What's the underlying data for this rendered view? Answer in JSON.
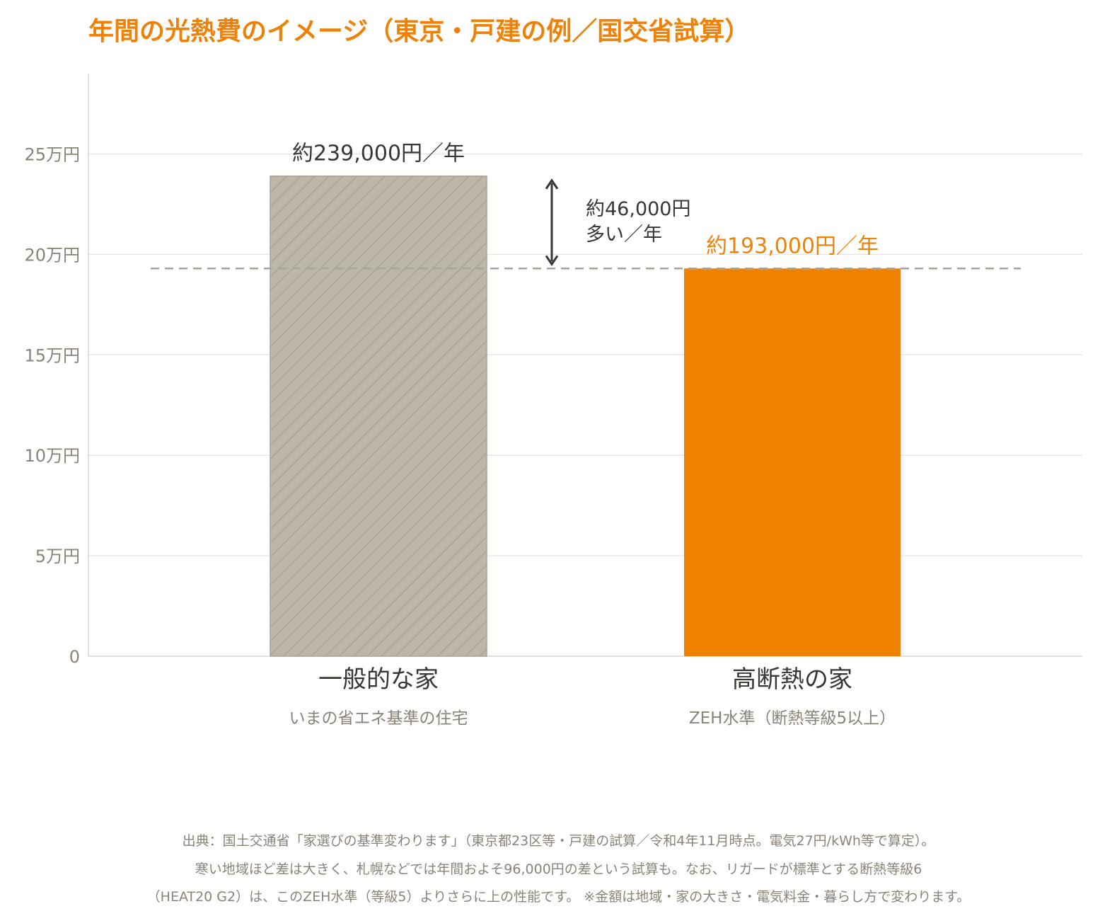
{
  "colors": {
    "title": "#ee8208",
    "axis_text": "#8a8378",
    "grid": "#e8e6e2",
    "axis_line": "#d8d5cf",
    "bar_general": "#bdb7aa",
    "bar_general_stripe": "#a8a294",
    "bar_high": "#ef8201",
    "dashed_line": "#a9a59c",
    "dark_text": "#3a3632",
    "highlight_text": "#ee8208"
  },
  "chart_data": {
    "type": "bar",
    "title": "年間の光熱費のイメージ（東京・戸建の例／国交省試算）",
    "y_unit": "円",
    "ylim": [
      0,
      290000
    ],
    "yticks": [
      0,
      50000,
      100000,
      150000,
      200000,
      250000
    ],
    "ytick_labels": [
      "0",
      "5万円",
      "10万円",
      "15万円",
      "20万円",
      "25万円"
    ],
    "grid": true,
    "categories": [
      "一般的な家",
      "高断熱の家"
    ],
    "subcategories": [
      "いまの省エネ基準の住宅",
      "ZEH水準（断熱等級5以上）"
    ],
    "values": [
      239000,
      193000
    ],
    "value_labels": [
      "約239,000円／年",
      "約193,000円／年"
    ],
    "bar_styles": [
      "hatched-gray",
      "solid-orange"
    ],
    "reference_line": {
      "value": 193000,
      "style": "dashed"
    },
    "difference": {
      "value": 46000,
      "label_line1": "約46,000円",
      "label_line2": "多い／年",
      "from": 193000,
      "to": 239000
    }
  },
  "footnote": {
    "line1": "出典：国土交通省「家選びの基準変わります」（東京都23区等・戸建の試算／令和4年11月時点。電気27円/kWh等で算定）。",
    "line2": "寒い地域ほど差は大きく、札幌などでは年間およそ96,000円の差という試算も。なお、リガードが標準とする断熱等級6",
    "line3": "（HEAT20 G2）は、このZEH水準（等級5）よりさらに上の性能です。 ※金額は地域・家の大きさ・電気料金・暮らし方で変わります。"
  }
}
